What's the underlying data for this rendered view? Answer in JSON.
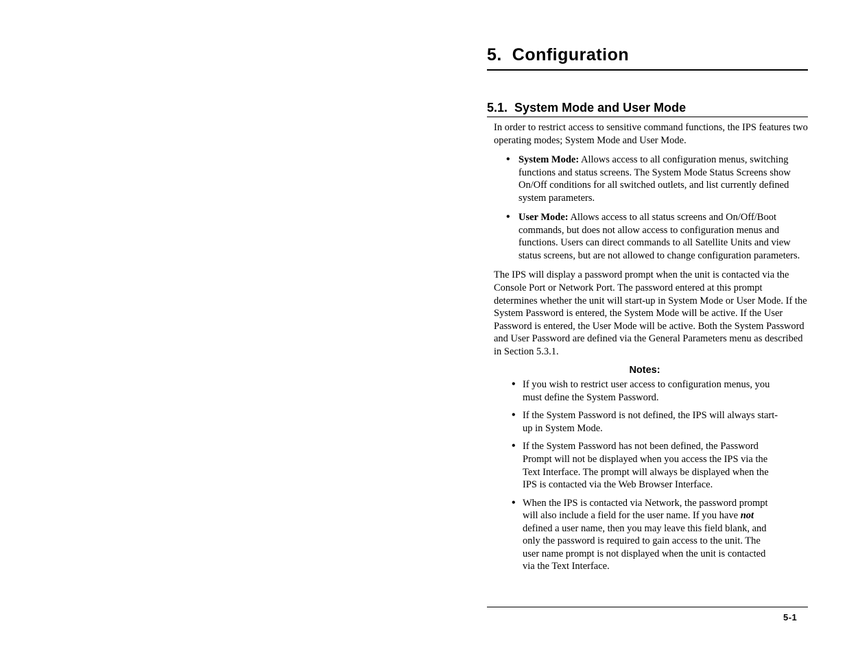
{
  "chapter": {
    "number": "5.",
    "title": "Configuration"
  },
  "section": {
    "number": "5.1.",
    "title": "System Mode and User Mode"
  },
  "intro": "In order to restrict access to sensitive command functions, the IPS features two operating modes; System Mode and User Mode.",
  "modes": [
    {
      "label": "System Mode:",
      "text": "  Allows access to all configuration menus, switching functions and status screens.  The System Mode Status Screens show On/Off conditions for all switched outlets, and list currently defined system parameters."
    },
    {
      "label": "User Mode:",
      "text": "  Allows access to all status screens and On/Off/Boot commands, but does not allow access to configuration menus and functions.  Users can direct commands to all Satellite Units and view status screens, but are not allowed to change configuration parameters."
    }
  ],
  "para2": "The IPS will display a password prompt when the unit is contacted via the Console Port or Network Port.  The password entered at this prompt determines whether the unit will start-up in System Mode or User Mode.  If the System Password is entered, the System Mode will be active.  If the User Password is entered, the User Mode will be active.  Both the System Password and User Password are defined via the General Parameters menu as described in Section 5.3.1.",
  "notesHeading": "Notes:",
  "notes": [
    "If you wish to restrict user access to configuration menus, you must define the System Password.",
    "If the System Password is not defined,  the IPS will always start-up in System Mode.",
    "If the System Password has not been defined, the Password Prompt will not be displayed when you access the IPS via the Text Interface.  The prompt will always be displayed when the IPS is contacted via the Web Browser Interface."
  ],
  "note4_pre": "When the IPS is contacted via Network, the password prompt will also include a field for the user name.  If you have ",
  "note4_em": "not",
  "note4_post": " defined a user name, then you may leave this field blank, and only the password is required to gain access to the unit.  The user name prompt is not displayed when the unit is contacted via the Text Interface.",
  "pageNumber": "5-1",
  "colors": {
    "text": "#000000",
    "bg": "#ffffff",
    "rule": "#000000"
  }
}
